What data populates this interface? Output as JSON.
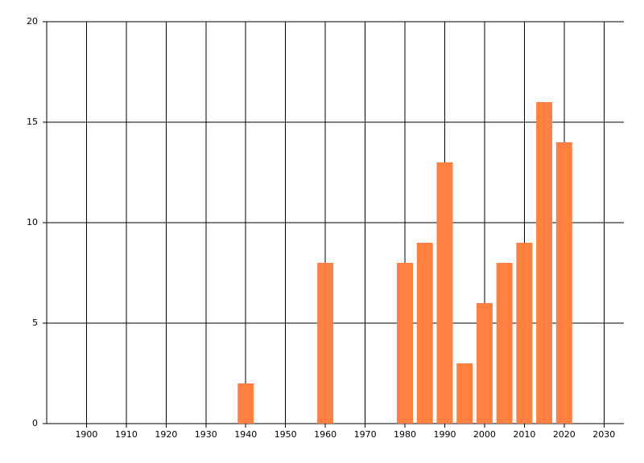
{
  "chart_data": {
    "type": "bar",
    "x": [
      1940,
      1960,
      1980,
      1985,
      1990,
      1995,
      2000,
      2005,
      2010,
      2015,
      2020
    ],
    "values": [
      2,
      8,
      8,
      9,
      13,
      3,
      6,
      8,
      9,
      16,
      14
    ],
    "color": "#ff8040",
    "xlim": [
      1890,
      2035
    ],
    "xticks": [
      1900,
      1910,
      1920,
      1930,
      1940,
      1950,
      1960,
      1970,
      1980,
      1990,
      2000,
      2010,
      2020,
      2030
    ],
    "ylim": [
      0,
      20
    ],
    "yticks": [
      0,
      5,
      10,
      15,
      20
    ],
    "grid": true
  }
}
